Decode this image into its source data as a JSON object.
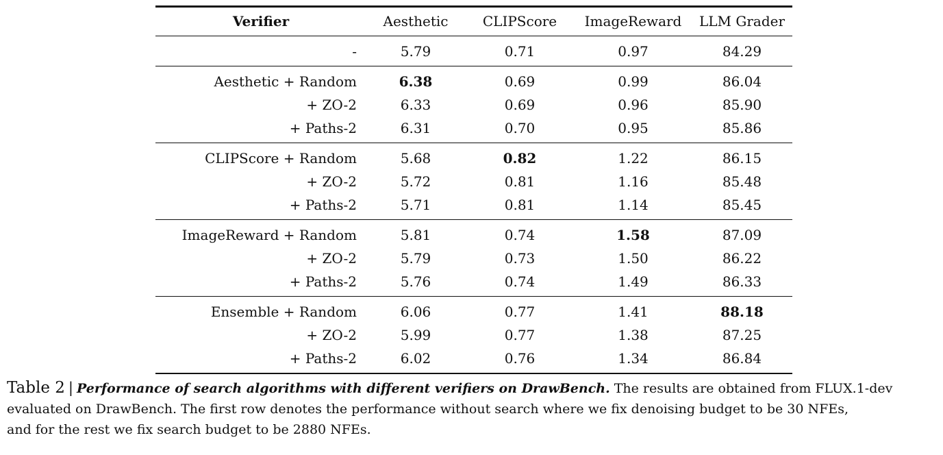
{
  "table": {
    "columns": [
      "Verifier",
      "Aesthetic",
      "CLIPScore",
      "ImageReward",
      "LLM Grader"
    ],
    "groups": [
      {
        "kind": "baseline",
        "rows": [
          {
            "verifier": "-",
            "values": [
              "5.79",
              "0.71",
              "0.97",
              "84.29"
            ],
            "bold": []
          }
        ]
      },
      {
        "kind": "aesthetic",
        "rows": [
          {
            "verifier": "Aesthetic + Random",
            "values": [
              "6.38",
              "0.69",
              "0.99",
              "86.04"
            ],
            "bold": [
              0
            ]
          },
          {
            "verifier": "+ ZO-2",
            "values": [
              "6.33",
              "0.69",
              "0.96",
              "85.90"
            ],
            "bold": []
          },
          {
            "verifier": "+ Paths-2",
            "values": [
              "6.31",
              "0.70",
              "0.95",
              "85.86"
            ],
            "bold": []
          }
        ]
      },
      {
        "kind": "clipscore",
        "rows": [
          {
            "verifier": "CLIPScore + Random",
            "values": [
              "5.68",
              "0.82",
              "1.22",
              "86.15"
            ],
            "bold": [
              1
            ]
          },
          {
            "verifier": "+ ZO-2",
            "values": [
              "5.72",
              "0.81",
              "1.16",
              "85.48"
            ],
            "bold": []
          },
          {
            "verifier": "+ Paths-2",
            "values": [
              "5.71",
              "0.81",
              "1.14",
              "85.45"
            ],
            "bold": []
          }
        ]
      },
      {
        "kind": "imagereward",
        "rows": [
          {
            "verifier": "ImageReward + Random",
            "values": [
              "5.81",
              "0.74",
              "1.58",
              "87.09"
            ],
            "bold": [
              2
            ]
          },
          {
            "verifier": "+ ZO-2",
            "values": [
              "5.79",
              "0.73",
              "1.50",
              "86.22"
            ],
            "bold": []
          },
          {
            "verifier": "+ Paths-2",
            "values": [
              "5.76",
              "0.74",
              "1.49",
              "86.33"
            ],
            "bold": []
          }
        ]
      },
      {
        "kind": "ensemble",
        "rows": [
          {
            "verifier": "Ensemble + Random",
            "values": [
              "6.06",
              "0.77",
              "1.41",
              "88.18"
            ],
            "bold": [
              3
            ]
          },
          {
            "verifier": "+ ZO-2",
            "values": [
              "5.99",
              "0.77",
              "1.38",
              "87.25"
            ],
            "bold": []
          },
          {
            "verifier": "+ Paths-2",
            "values": [
              "6.02",
              "0.76",
              "1.34",
              "86.84"
            ],
            "bold": []
          }
        ]
      }
    ]
  },
  "caption": {
    "label": "Table 2",
    "separator": "|",
    "title": "Performance of search algorithms with different verifiers on DrawBench.",
    "body_line1": "The results are obtained from FLUX.1-dev",
    "body_line2": "evaluated on DrawBench. The first row denotes the performance without search where we fix denoising budget to be 30 NFEs,",
    "body_line3": "and for the rest we fix search budget to be 2880 NFEs."
  }
}
